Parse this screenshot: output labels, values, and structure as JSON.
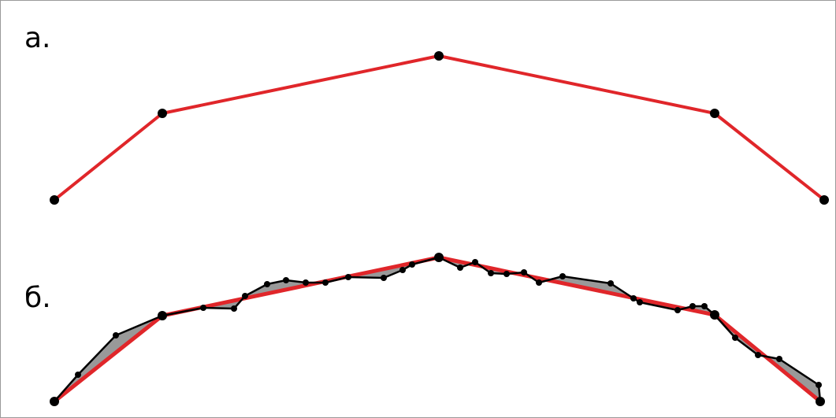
{
  "labels": {
    "panel_a": "а.",
    "panel_b": "б."
  },
  "colors": {
    "simplified_line": "#e0262a",
    "detailed_line": "#000000",
    "vertex": "#000000",
    "deviation_fill": "#999999"
  }
}
